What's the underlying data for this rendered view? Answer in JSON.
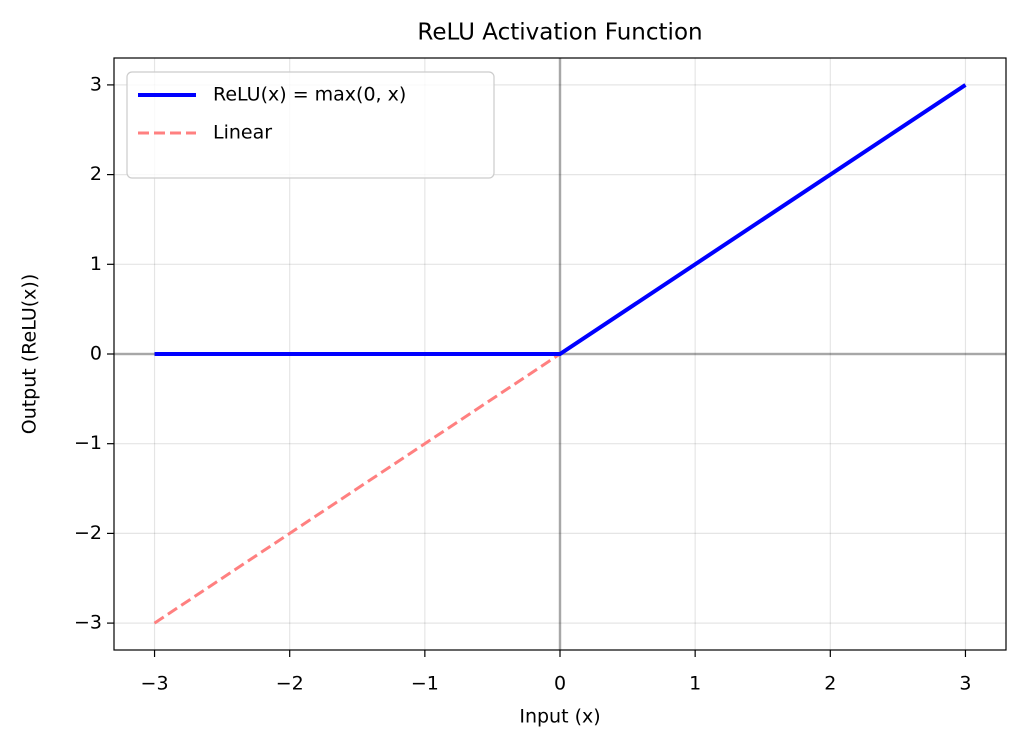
{
  "chart_data": {
    "type": "line",
    "title": "ReLU Activation Function",
    "x_label": "Input (x)",
    "y_label": "Output (ReLU(x))",
    "x": [
      -3,
      0,
      3
    ],
    "series": [
      {
        "name": "ReLU(x) = max(0, x)",
        "color": "#0000ff",
        "linestyle": "solid",
        "values": [
          0,
          0,
          3
        ]
      },
      {
        "name": "Linear",
        "color": "#ff8080",
        "linestyle": "dashed",
        "values": [
          -3,
          0,
          3
        ]
      }
    ],
    "xlim": [
      -3.3,
      3.3
    ],
    "ylim": [
      -3.3,
      3.3
    ],
    "xticks": [
      {
        "value": -3,
        "label": "−3"
      },
      {
        "value": -2,
        "label": "−2"
      },
      {
        "value": -1,
        "label": "−1"
      },
      0,
      1,
      2,
      3
    ],
    "yticks": [
      {
        "value": -3,
        "label": "−3"
      },
      {
        "value": -2,
        "label": "−2"
      },
      {
        "value": -1,
        "label": "−1"
      },
      0,
      1,
      2,
      3
    ],
    "axhline": 0,
    "axvline": 0,
    "grid": true,
    "legend": "upper left"
  }
}
